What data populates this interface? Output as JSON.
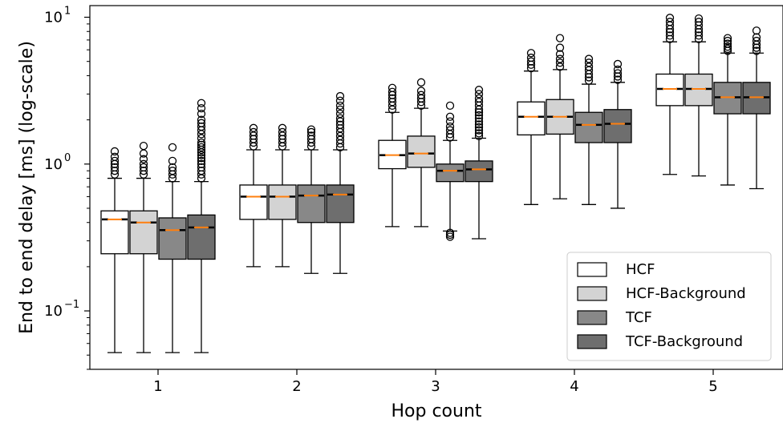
{
  "chart_data": {
    "type": "boxplot",
    "xlabel": "Hop count",
    "ylabel": "End to end delay [ms] (log-scale)",
    "yscale": "log",
    "ylim": [
      0.04,
      12
    ],
    "yticks": [
      {
        "value": 0.1,
        "base": "10",
        "exp": "−1"
      },
      {
        "value": 1,
        "base": "10",
        "exp": "0"
      },
      {
        "value": 10,
        "base": "10",
        "exp": "1"
      }
    ],
    "categories": [
      "1",
      "2",
      "3",
      "4",
      "5"
    ],
    "legend_position": "lower-right",
    "series": [
      {
        "name": "HCF",
        "color": "#ffffff",
        "boxes": [
          {
            "whislo": 0.052,
            "q1": 0.245,
            "med": 0.42,
            "q3": 0.48,
            "whishi": 0.8,
            "fliers": [
              0.85,
              0.9,
              0.95,
              1.0,
              1.05,
              1.12,
              1.22
            ]
          },
          {
            "whislo": 0.2,
            "q1": 0.42,
            "med": 0.6,
            "q3": 0.72,
            "whishi": 1.25,
            "fliers": [
              1.32,
              1.4,
              1.48,
              1.56,
              1.65,
              1.76
            ]
          },
          {
            "whislo": 0.375,
            "q1": 0.93,
            "med": 1.15,
            "q3": 1.45,
            "whishi": 2.25,
            "fliers": [
              2.35,
              2.5,
              2.65,
              2.8,
              2.95,
              3.1,
              3.3
            ]
          },
          {
            "whislo": 0.53,
            "q1": 1.58,
            "med": 2.1,
            "q3": 2.65,
            "whishi": 4.3,
            "fliers": [
              4.5,
              4.75,
              5.0,
              5.3,
              5.7
            ]
          },
          {
            "whislo": 0.85,
            "q1": 2.5,
            "med": 3.25,
            "q3": 4.1,
            "whishi": 6.8,
            "fliers": [
              7.1,
              7.5,
              7.9,
              8.3,
              8.8,
              9.3,
              9.9
            ]
          }
        ]
      },
      {
        "name": "HCF-Background",
        "color": "#d3d3d3",
        "boxes": [
          {
            "whislo": 0.052,
            "q1": 0.245,
            "med": 0.4,
            "q3": 0.48,
            "whishi": 0.8,
            "fliers": [
              0.85,
              0.9,
              0.95,
              1.0,
              1.08,
              1.18,
              1.33
            ]
          },
          {
            "whislo": 0.2,
            "q1": 0.42,
            "med": 0.6,
            "q3": 0.72,
            "whishi": 1.25,
            "fliers": [
              1.32,
              1.4,
              1.48,
              1.56,
              1.65,
              1.76
            ]
          },
          {
            "whislo": 0.375,
            "q1": 0.95,
            "med": 1.18,
            "q3": 1.55,
            "whishi": 2.4,
            "fliers": [
              2.5,
              2.65,
              2.8,
              2.95,
              3.15,
              3.6
            ]
          },
          {
            "whislo": 0.58,
            "q1": 1.6,
            "med": 2.1,
            "q3": 2.75,
            "whishi": 4.4,
            "fliers": [
              4.6,
              4.9,
              5.2,
              5.6,
              6.2,
              7.2
            ]
          },
          {
            "whislo": 0.83,
            "q1": 2.5,
            "med": 3.25,
            "q3": 4.1,
            "whishi": 6.8,
            "fliers": [
              7.1,
              7.5,
              7.9,
              8.3,
              8.8,
              9.3,
              9.8
            ]
          }
        ]
      },
      {
        "name": "TCF",
        "color": "#888888",
        "boxes": [
          {
            "whislo": 0.052,
            "q1": 0.225,
            "med": 0.355,
            "q3": 0.43,
            "whishi": 0.76,
            "fliers": [
              0.8,
              0.85,
              0.9,
              0.95,
              1.05,
              1.3
            ]
          },
          {
            "whislo": 0.18,
            "q1": 0.4,
            "med": 0.61,
            "q3": 0.72,
            "whishi": 1.25,
            "fliers": [
              1.32,
              1.4,
              1.48,
              1.56,
              1.65,
              1.72
            ]
          },
          {
            "whislo": 0.35,
            "q1": 0.76,
            "med": 0.9,
            "q3": 1.0,
            "whishi": 1.45,
            "fliers": [
              1.52,
              1.6,
              1.7,
              1.8,
              1.95,
              2.1,
              2.5,
              0.34,
              0.33,
              0.32
            ]
          },
          {
            "whislo": 0.53,
            "q1": 1.4,
            "med": 1.85,
            "q3": 2.25,
            "whishi": 3.5,
            "fliers": [
              3.7,
              3.9,
              4.1,
              4.35,
              4.6,
              4.9,
              5.2
            ]
          },
          {
            "whislo": 0.72,
            "q1": 2.2,
            "med": 2.85,
            "q3": 3.6,
            "whishi": 5.7,
            "fliers": [
              5.9,
              6.1,
              6.3,
              6.6,
              6.9,
              7.2
            ]
          }
        ]
      },
      {
        "name": "TCF-Background",
        "color": "#6e6e6e",
        "boxes": [
          {
            "whislo": 0.052,
            "q1": 0.225,
            "med": 0.37,
            "q3": 0.45,
            "whishi": 0.76,
            "fliers": [
              0.8,
              0.85,
              0.9,
              0.95,
              1.0,
              1.05,
              1.1,
              1.15,
              1.2,
              1.25,
              1.3,
              1.35,
              1.4,
              1.5,
              1.6,
              1.7,
              1.8,
              1.9,
              2.0,
              2.2,
              2.4,
              2.6
            ]
          },
          {
            "whislo": 0.18,
            "q1": 0.4,
            "med": 0.62,
            "q3": 0.72,
            "whishi": 1.25,
            "fliers": [
              1.3,
              1.38,
              1.46,
              1.55,
              1.65,
              1.75,
              1.85,
              1.95,
              2.05,
              2.2,
              2.35,
              2.5,
              2.7,
              2.9
            ]
          },
          {
            "whislo": 0.31,
            "q1": 0.76,
            "med": 0.92,
            "q3": 1.05,
            "whishi": 1.5,
            "fliers": [
              1.55,
              1.62,
              1.7,
              1.78,
              1.86,
              1.95,
              2.05,
              2.15,
              2.25,
              2.35,
              2.5,
              2.65,
              2.8,
              3.0,
              3.2
            ]
          },
          {
            "whislo": 0.5,
            "q1": 1.4,
            "med": 1.88,
            "q3": 2.35,
            "whishi": 3.6,
            "fliers": [
              3.75,
              3.95,
              4.15,
              4.4,
              4.8
            ]
          },
          {
            "whislo": 0.68,
            "q1": 2.2,
            "med": 2.85,
            "q3": 3.6,
            "whishi": 5.7,
            "fliers": [
              5.9,
              6.2,
              6.5,
              6.9,
              7.3,
              8.1
            ]
          }
        ]
      }
    ]
  }
}
